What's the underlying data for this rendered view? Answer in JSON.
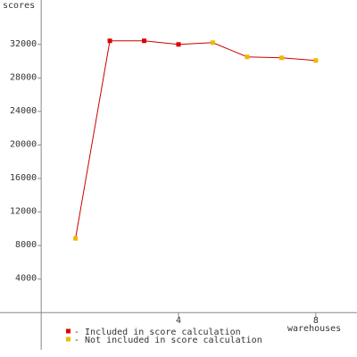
{
  "chart_data": {
    "type": "line",
    "y_label": "scores",
    "x_label": "warehouses",
    "x": [
      1,
      2,
      3,
      4,
      5,
      6,
      7,
      8
    ],
    "values": [
      8850,
      32430,
      32430,
      32000,
      32210,
      30510,
      30400,
      30080
    ],
    "included": [
      false,
      true,
      true,
      true,
      false,
      false,
      false,
      false
    ],
    "line_color": "#cc0000",
    "legend": [
      {
        "name": "- Included in score calculation",
        "color": "#dd0000"
      },
      {
        "name": "- Not included in score calculation",
        "color": "#f0b800"
      }
    ],
    "xlim": [
      -1.2,
      9.2
    ],
    "xticks": [
      4,
      8
    ],
    "ylim": [
      -5300,
      37300
    ],
    "yticks": [
      4000,
      8000,
      12000,
      16000,
      20000,
      24000,
      28000,
      32000
    ]
  }
}
